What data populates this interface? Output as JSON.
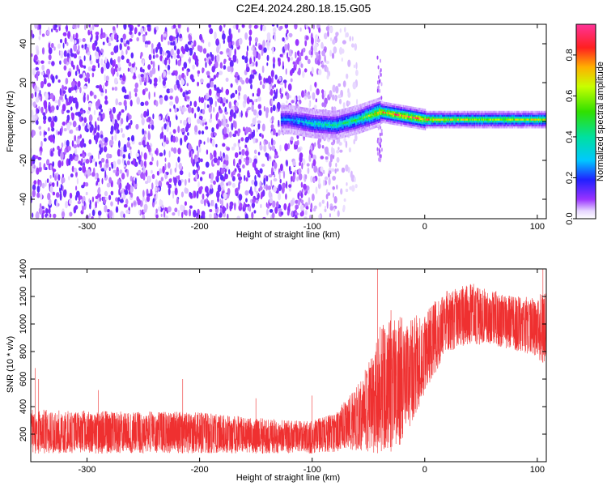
{
  "title": "C2E4.2024.280.18.15.G05",
  "colors": {
    "spectrogram_low": "#ffffff",
    "spectrogram_mid": "#7f1dff",
    "snr_line": "#ef3030"
  },
  "chart_data": [
    {
      "type": "heatmap",
      "title": "",
      "xlabel": "Height of straight line (km)",
      "ylabel": "Frequency (Hz)",
      "xlim": [
        -350,
        108
      ],
      "ylim": [
        -50,
        50
      ],
      "x_ticks": [
        -300,
        -200,
        -100,
        0,
        100
      ],
      "y_ticks": [
        -40,
        -20,
        0,
        20,
        40
      ],
      "colorbar": {
        "label": "Normalized spectral amplitude",
        "range": [
          0.0,
          0.95
        ],
        "ticks": [
          "0.0",
          "0.2",
          "0.4",
          "0.6",
          "0.8"
        ]
      },
      "noise_region_end_km": -70,
      "signal_center_hz": [
        [
          -120,
          1
        ],
        [
          -100,
          -1
        ],
        [
          -80,
          -2
        ],
        [
          -60,
          1
        ],
        [
          -40,
          5
        ],
        [
          -20,
          3
        ],
        [
          0,
          1
        ],
        [
          20,
          1
        ],
        [
          60,
          1
        ],
        [
          100,
          1
        ]
      ],
      "peak_amplitude": [
        [
          -120,
          0.3
        ],
        [
          -100,
          0.4
        ],
        [
          -80,
          0.45
        ],
        [
          -60,
          0.5
        ],
        [
          -40,
          0.8
        ],
        [
          -20,
          0.9
        ],
        [
          0,
          0.85
        ],
        [
          20,
          0.7
        ],
        [
          60,
          0.65
        ],
        [
          100,
          0.7
        ]
      ]
    },
    {
      "type": "line",
      "title": "",
      "xlabel": "Height of straight line (km)",
      "ylabel": "SNR (10 * v/v)",
      "xlim": [
        -350,
        108
      ],
      "ylim": [
        0,
        1400
      ],
      "x_ticks": [
        -300,
        -200,
        -100,
        0,
        100
      ],
      "y_ticks": [
        200,
        400,
        600,
        800,
        1000,
        1200,
        1400
      ],
      "series": [
        {
          "envelope_low": [
            [
              -350,
              60
            ],
            [
              -200,
              60
            ],
            [
              -100,
              60
            ],
            [
              -60,
              80
            ],
            [
              -40,
              60
            ],
            [
              -25,
              80
            ],
            [
              -10,
              300
            ],
            [
              0,
              500
            ],
            [
              20,
              800
            ],
            [
              40,
              850
            ],
            [
              60,
              850
            ],
            [
              80,
              800
            ],
            [
              100,
              750
            ],
            [
              108,
              700
            ]
          ],
          "envelope_high": [
            [
              -350,
              380
            ],
            [
              -300,
              370
            ],
            [
              -200,
              360
            ],
            [
              -150,
              320
            ],
            [
              -120,
              300
            ],
            [
              -100,
              300
            ],
            [
              -80,
              350
            ],
            [
              -60,
              550
            ],
            [
              -45,
              800
            ],
            [
              -40,
              1000
            ],
            [
              -25,
              1050
            ],
            [
              -10,
              1050
            ],
            [
              0,
              1100
            ],
            [
              20,
              1250
            ],
            [
              40,
              1300
            ],
            [
              60,
              1250
            ],
            [
              80,
              1200
            ],
            [
              100,
              1200
            ],
            [
              108,
              1250
            ]
          ],
          "spikes": [
            [
              -346,
              680
            ],
            [
              -343,
              600
            ],
            [
              -290,
              520
            ],
            [
              -215,
              600
            ],
            [
              -150,
              460
            ],
            [
              -100,
              480
            ],
            [
              -42,
              1400
            ],
            [
              -30,
              1100
            ],
            [
              -22,
              1050
            ],
            [
              -5,
              700
            ],
            [
              10,
              1100
            ],
            [
              105,
              1400
            ]
          ]
        }
      ]
    }
  ]
}
